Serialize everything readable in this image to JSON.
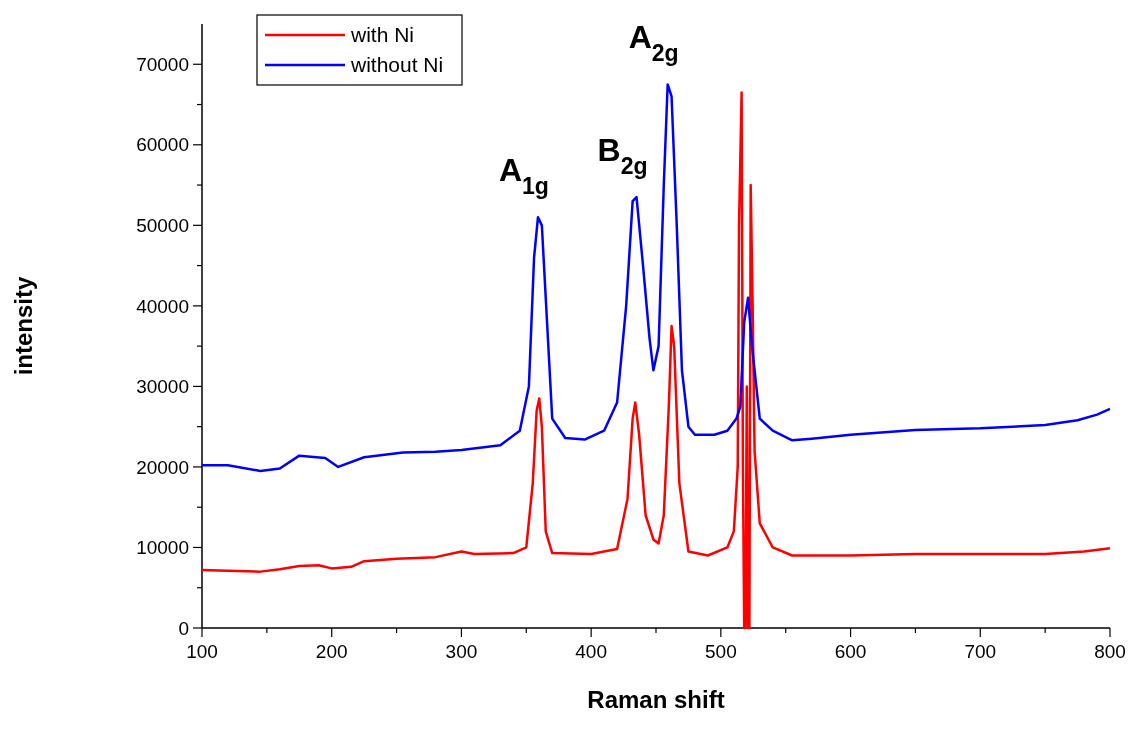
{
  "chart_data": {
    "type": "line",
    "xlabel": "Raman shift",
    "ylabel": "intensity",
    "xlim": [
      100,
      800
    ],
    "ylim": [
      0,
      75000
    ],
    "xticks": [
      100,
      {
        "value": 150,
        "label": null
      },
      200,
      {
        "value": 250,
        "label": null
      },
      300,
      {
        "value": 350,
        "label": null
      },
      400,
      {
        "value": 450,
        "label": null
      },
      500,
      {
        "value": 550,
        "label": null
      },
      600,
      {
        "value": 650,
        "label": null
      },
      700,
      {
        "value": 750,
        "label": null
      },
      800
    ],
    "yticks": [
      0,
      {
        "value": 5000,
        "label": null
      },
      10000,
      {
        "value": 15000,
        "label": null
      },
      20000,
      {
        "value": 25000,
        "label": null
      },
      30000,
      {
        "value": 35000,
        "label": null
      },
      40000,
      {
        "value": 45000,
        "label": null
      },
      50000,
      {
        "value": 55000,
        "label": null
      },
      60000,
      {
        "value": 65000,
        "label": null
      },
      70000
    ],
    "grid": false,
    "legend": "top left",
    "line_style": "solid",
    "marker": "none",
    "series": [
      {
        "name": "with Ni",
        "color": "#ff0000",
        "x": [
          100,
          120,
          145,
          160,
          175,
          190,
          200,
          215,
          225,
          250,
          280,
          300,
          310,
          340,
          350,
          355,
          358,
          360,
          362,
          365,
          370,
          400,
          420,
          428,
          432,
          434,
          437,
          442,
          448,
          452,
          456,
          460,
          462,
          464,
          468,
          475,
          490,
          505,
          510,
          513,
          514,
          516,
          517,
          518,
          519,
          520,
          521,
          522,
          523,
          524.5,
          526,
          530,
          540,
          555,
          600,
          650,
          700,
          750,
          780,
          800
        ],
        "values": [
          7200,
          7100,
          7000,
          7300,
          7700,
          7800,
          7400,
          7600,
          8300,
          8600,
          8800,
          9500,
          9200,
          9300,
          10000,
          18000,
          27000,
          28500,
          25000,
          12000,
          9300,
          9200,
          9800,
          16000,
          26000,
          28000,
          24000,
          14000,
          11000,
          10500,
          14000,
          28000,
          37500,
          35000,
          18000,
          9500,
          9000,
          10000,
          12000,
          20000,
          50000,
          66500,
          20000,
          0,
          0,
          30000,
          0,
          0,
          55000,
          40000,
          22000,
          13000,
          10000,
          9000,
          9000,
          9200,
          9200,
          9200,
          9500,
          9900
        ]
      },
      {
        "name": "without Ni",
        "color": "#0000ff",
        "x": [
          100,
          120,
          145,
          160,
          175,
          195,
          205,
          225,
          255,
          280,
          300,
          330,
          345,
          352,
          356,
          359,
          362,
          366,
          370,
          380,
          395,
          410,
          420,
          427,
          432,
          435,
          440,
          445,
          448,
          452,
          456,
          459,
          462,
          466,
          470,
          475,
          480,
          495,
          505,
          512,
          515,
          518,
          521,
          524,
          530,
          540,
          555,
          570,
          600,
          650,
          700,
          750,
          775,
          790,
          800
        ],
        "values": [
          20200,
          20200,
          19500,
          19800,
          21400,
          21100,
          20000,
          21200,
          21800,
          21900,
          22100,
          22700,
          24500,
          30000,
          46000,
          51000,
          50000,
          38000,
          26000,
          23600,
          23400,
          24500,
          28000,
          40000,
          53000,
          53500,
          45000,
          36000,
          32000,
          35000,
          55000,
          67500,
          66000,
          50000,
          32000,
          25000,
          24000,
          24000,
          24500,
          26000,
          27500,
          38000,
          41000,
          35000,
          26000,
          24500,
          23300,
          23500,
          24000,
          24600,
          24800,
          25200,
          25800,
          26500,
          27200
        ]
      }
    ],
    "annotations": [
      {
        "text": "A$_{1g}$",
        "x": 359,
        "y": 51000
      },
      {
        "text": "B$_{2g}$",
        "x": 435,
        "y": 53500
      },
      {
        "text": "A$_{2g}$",
        "x": 459,
        "y": 67500
      }
    ]
  }
}
